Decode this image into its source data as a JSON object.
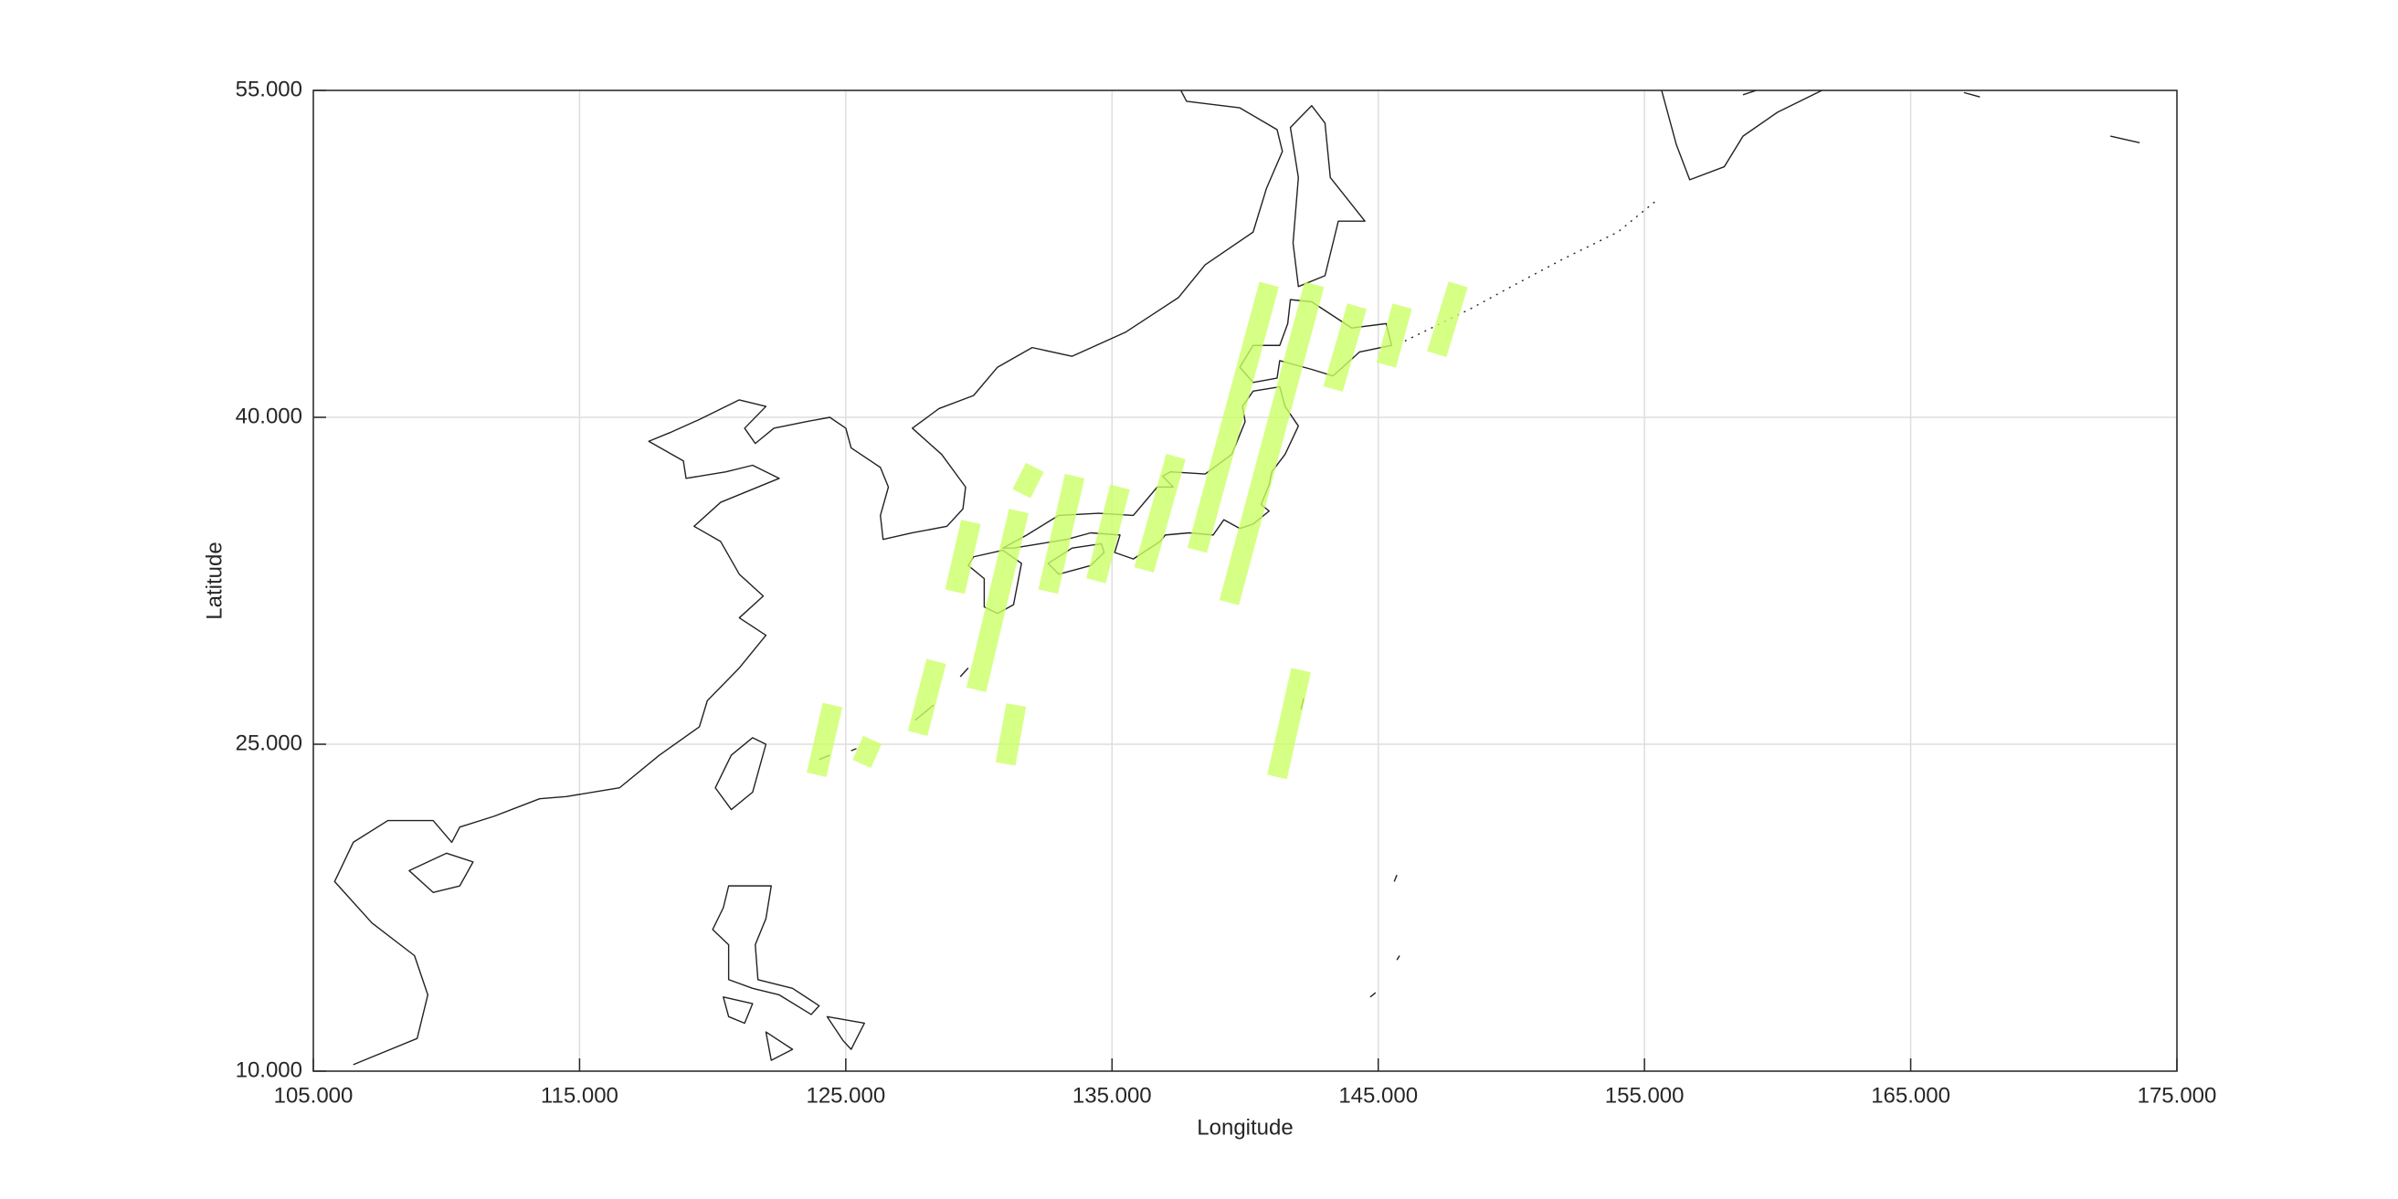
{
  "chart_data": {
    "type": "map",
    "xlabel": "Longitude",
    "ylabel": "Latitude",
    "xlim": [
      105,
      175
    ],
    "ylim": [
      10,
      55
    ],
    "xticks": [
      {
        "value": 105,
        "label": "105.000"
      },
      {
        "value": 115,
        "label": "115.000"
      },
      {
        "value": 125,
        "label": "125.000"
      },
      {
        "value": 135,
        "label": "135.000"
      },
      {
        "value": 145,
        "label": "145.000"
      },
      {
        "value": 155,
        "label": "155.000"
      },
      {
        "value": 165,
        "label": "165.000"
      },
      {
        "value": 175,
        "label": "175.000"
      }
    ],
    "yticks": [
      {
        "value": 10,
        "label": "10.000"
      },
      {
        "value": 25,
        "label": "25.000"
      },
      {
        "value": 40,
        "label": "40.000"
      },
      {
        "value": 55,
        "label": "55.000"
      }
    ],
    "grid": true,
    "swath_color": "#ccff66",
    "swaths": [
      {
        "lon": [
          123.9,
          124.5
        ],
        "lat": [
          23.6,
          26.8
        ]
      },
      {
        "lon": [
          125.6,
          126.0
        ],
        "lat": [
          24.1,
          25.2
        ]
      },
      {
        "lon": [
          127.7,
          128.4
        ],
        "lat": [
          25.5,
          28.8
        ]
      },
      {
        "lon": [
          129.1,
          129.7
        ],
        "lat": [
          32.0,
          35.2
        ]
      },
      {
        "lon": [
          129.9,
          131.5
        ],
        "lat": [
          27.5,
          35.7
        ]
      },
      {
        "lon": [
          131.6,
          132.1
        ],
        "lat": [
          36.5,
          37.7
        ]
      },
      {
        "lon": [
          131.0,
          131.4
        ],
        "lat": [
          24.1,
          26.8
        ]
      },
      {
        "lon": [
          132.6,
          133.6
        ],
        "lat": [
          32.0,
          37.3
        ]
      },
      {
        "lon": [
          134.4,
          135.3
        ],
        "lat": [
          32.5,
          36.8
        ]
      },
      {
        "lon": [
          136.2,
          137.4
        ],
        "lat": [
          33.0,
          38.2
        ]
      },
      {
        "lon": [
          138.2,
          140.9
        ],
        "lat": [
          33.9,
          46.1
        ]
      },
      {
        "lon": [
          139.4,
          142.6
        ],
        "lat": [
          31.5,
          46.1
        ]
      },
      {
        "lon": [
          143.3,
          144.2
        ],
        "lat": [
          41.3,
          45.1
        ]
      },
      {
        "lon": [
          145.3,
          145.9
        ],
        "lat": [
          42.4,
          45.1
        ]
      },
      {
        "lon": [
          147.2,
          148.0
        ],
        "lat": [
          42.9,
          46.1
        ]
      },
      {
        "lon": [
          141.2,
          142.1
        ],
        "lat": [
          23.5,
          28.4
        ]
      }
    ]
  }
}
